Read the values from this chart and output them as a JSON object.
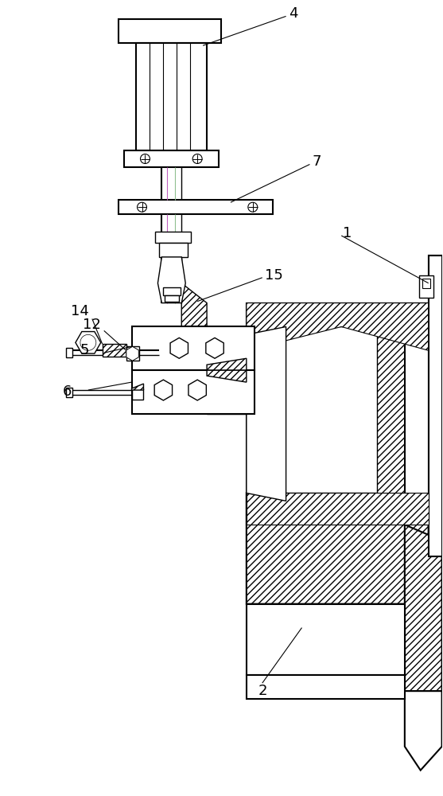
{
  "bg_color": "#ffffff",
  "line_color": "#000000",
  "figsize": [
    5.57,
    10.0
  ],
  "dpi": 100,
  "label_fontsize": 13
}
